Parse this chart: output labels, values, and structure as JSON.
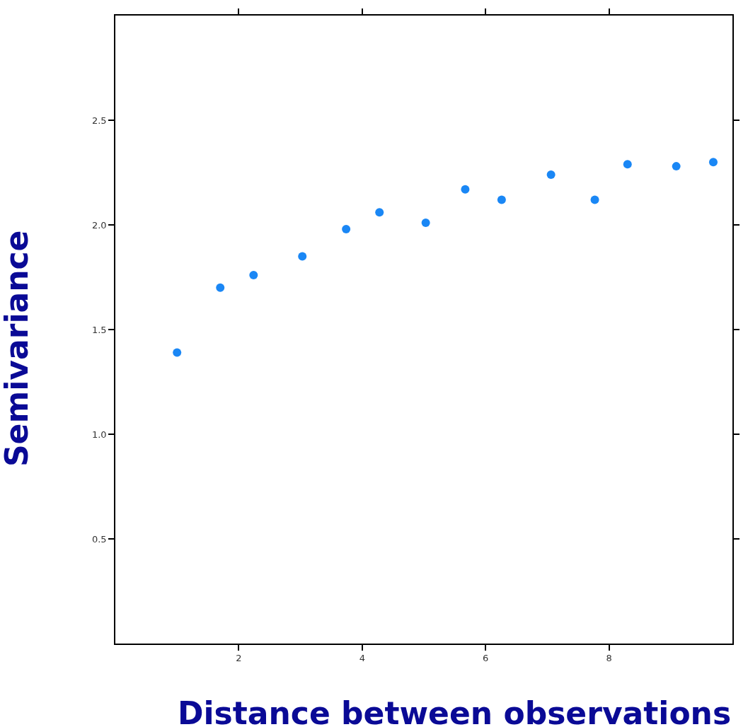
{
  "chart_data": {
    "type": "scatter",
    "xlabel": "Distance between observations",
    "ylabel": "Semivariance",
    "x": [
      1.0,
      1.7,
      2.24,
      3.03,
      3.74,
      4.28,
      5.03,
      5.67,
      6.26,
      7.06,
      7.77,
      8.3,
      9.09,
      9.69
    ],
    "series": [
      {
        "color": "#1a87f5",
        "values": [
          1.39,
          1.7,
          1.76,
          1.85,
          1.98,
          2.06,
          2.01,
          2.17,
          2.12,
          2.24,
          2.12,
          2.29,
          2.28,
          2.3
        ]
      }
    ],
    "xlim": [
      0,
      10
    ],
    "ylim": [
      0,
      3
    ],
    "xticks": [
      2,
      4,
      6,
      8
    ],
    "yticks": [
      0.5,
      {
        "value": 1,
        "label": "1.0"
      },
      1.5,
      {
        "value": 2,
        "label": "2.0"
      },
      2.5
    ],
    "marker": "circle"
  }
}
